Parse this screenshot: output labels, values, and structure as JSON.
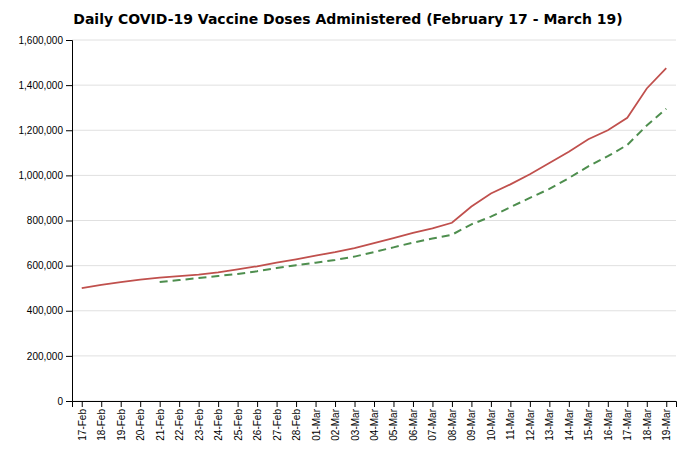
{
  "chart_data": {
    "type": "line",
    "title": "Daily COVID-19 Vaccine Doses Administered (February 17 - March 19)",
    "categories": [
      "17-Feb",
      "18-Feb",
      "19-Feb",
      "20-Feb",
      "21-Feb",
      "22-Feb",
      "23-Feb",
      "24-Feb",
      "25-Feb",
      "26-Feb",
      "27-Feb",
      "28-Feb",
      "01-Mar",
      "02-Mar",
      "03-Mar",
      "04-Mar",
      "05-Mar",
      "06-Mar",
      "07-Mar",
      "08-Mar",
      "09-Mar",
      "10-Mar",
      "11-Mar",
      "12-Mar",
      "13-Mar",
      "14-Mar",
      "15-Mar",
      "16-Mar",
      "17-Mar",
      "18-Mar",
      "19-Mar"
    ],
    "series": [
      {
        "color": "#c0504d",
        "line_style": "solid",
        "values": [
          500000,
          515000,
          527000,
          538000,
          547000,
          554000,
          560000,
          570000,
          583000,
          597000,
          613000,
          628000,
          644000,
          660000,
          678000,
          700000,
          722000,
          745000,
          765000,
          790000,
          862000,
          920000,
          960000,
          1005000,
          1055000,
          1105000,
          1160000,
          1200000,
          1255000,
          1385000,
          1475000
        ]
      },
      {
        "color": "#4e8e4e",
        "line_style": "dashed",
        "values": [
          null,
          null,
          null,
          null,
          527000,
          536000,
          545000,
          554000,
          563000,
          575000,
          589000,
          602000,
          613000,
          625000,
          640000,
          660000,
          681000,
          702000,
          720000,
          737000,
          783000,
          817000,
          859000,
          900000,
          940000,
          988000,
          1040000,
          1085000,
          1135000,
          1221000,
          1295000
        ]
      }
    ],
    "ylim": [
      0,
      1600000
    ],
    "yticks": [
      0,
      {
        "value": 200000,
        "label": "200,000"
      },
      {
        "value": 400000,
        "label": "400,000"
      },
      {
        "value": 600000,
        "label": "600,000"
      },
      {
        "value": 800000,
        "label": "800,000"
      },
      {
        "value": 1000000,
        "label": "1,000,000"
      },
      {
        "value": 1200000,
        "label": "1,200,000"
      },
      {
        "value": 1400000,
        "label": "1,400,000"
      },
      {
        "value": 1600000,
        "label": "1,600,000"
      }
    ],
    "grid": true
  }
}
